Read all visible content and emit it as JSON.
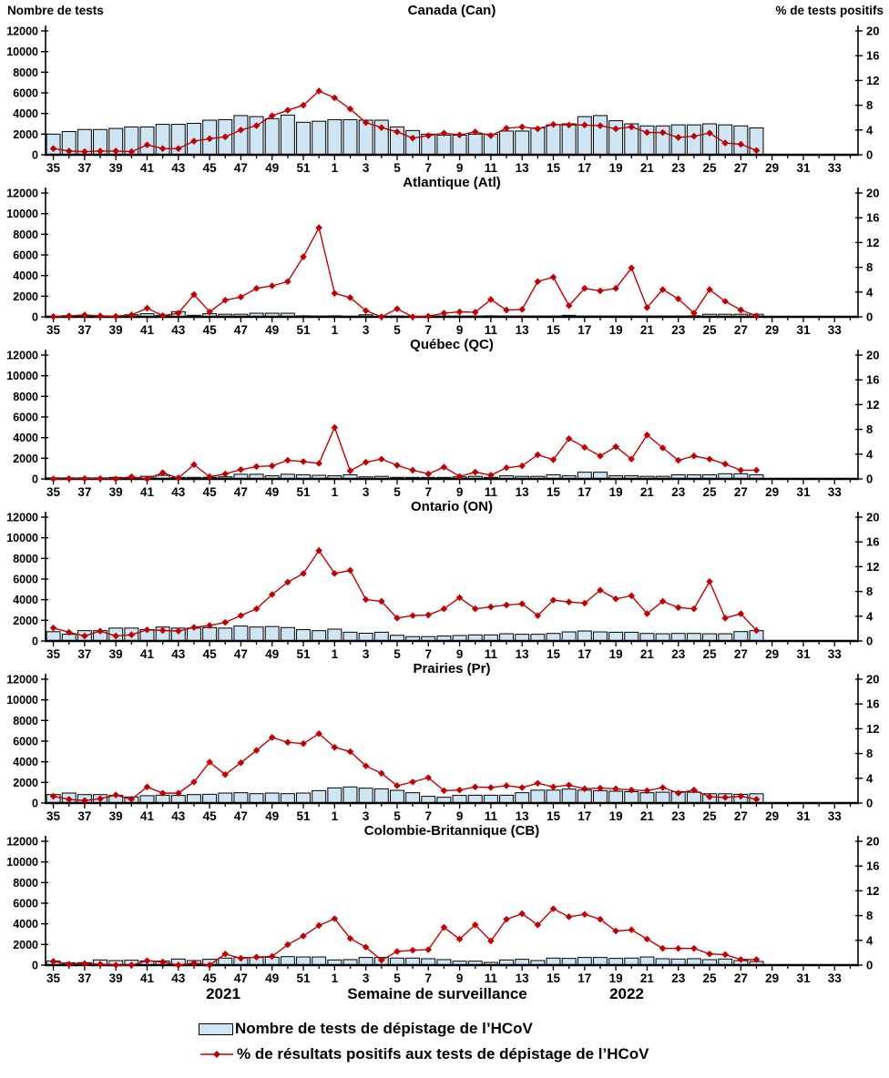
{
  "header": {
    "left_axis_title": "Nombre de tests",
    "right_axis_title": "% de tests positifs"
  },
  "footer": {
    "year_left": "2021",
    "x_axis_label": "Semaine de surveillance",
    "year_right": "2022"
  },
  "legend": {
    "bars_label": "Nombre de tests de dépistage de l’HCoV",
    "line_label": "% de résultats positifs aux tests de dépistage de l’HCoV"
  },
  "colors": {
    "bar_fill": "#cfe5f4",
    "bar_stroke": "#000000",
    "line_color": "#c00000",
    "axis_color": "#000000"
  },
  "axes": {
    "weeks": [
      35,
      36,
      37,
      38,
      39,
      40,
      41,
      42,
      43,
      44,
      45,
      46,
      47,
      48,
      49,
      50,
      51,
      52,
      1,
      2,
      3,
      4,
      5,
      6,
      7,
      8,
      9,
      10,
      11,
      12,
      13,
      14,
      15,
      16,
      17,
      18,
      19,
      20,
      21,
      22,
      23,
      24,
      25,
      26,
      27,
      28,
      29,
      30,
      31,
      32,
      33,
      34
    ],
    "x_tick_labels": [
      35,
      37,
      39,
      41,
      43,
      45,
      47,
      49,
      51,
      1,
      3,
      5,
      7,
      9,
      11,
      13,
      15,
      17,
      19,
      21,
      23,
      25,
      27,
      29,
      31,
      33
    ],
    "left_ticks": [
      0,
      2000,
      4000,
      6000,
      8000,
      10000,
      12000
    ],
    "right_ticks": [
      0,
      4,
      8,
      12,
      16,
      20
    ],
    "ylim_left": [
      0,
      12000
    ],
    "ylim_right": [
      0,
      20
    ]
  },
  "chart_data": [
    {
      "type": "bar+line",
      "id": "Can",
      "title": "Canada (Can)",
      "bars": [
        2000,
        2250,
        2450,
        2450,
        2550,
        2700,
        2700,
        2950,
        2950,
        3050,
        3350,
        3400,
        3800,
        3700,
        3500,
        3850,
        3150,
        3250,
        3400,
        3400,
        3350,
        3350,
        2700,
        2350,
        2000,
        1900,
        1900,
        2000,
        2000,
        2300,
        2300,
        2600,
        2900,
        3000,
        3700,
        3800,
        3300,
        3000,
        2800,
        2800,
        2900,
        2900,
        3000,
        2900,
        2800,
        2600
      ],
      "line": [
        1.0,
        0.6,
        0.5,
        0.6,
        0.6,
        0.5,
        1.6,
        1.0,
        1.0,
        2.2,
        2.6,
        2.9,
        4.0,
        4.7,
        6.3,
        7.2,
        8.0,
        10.3,
        9.2,
        7.4,
        5.2,
        4.4,
        3.7,
        2.7,
        3.1,
        3.5,
        3.2,
        3.7,
        3.1,
        4.3,
        4.5,
        4.2,
        4.9,
        4.8,
        4.8,
        4.7,
        4.2,
        4.5,
        3.6,
        3.6,
        2.8,
        3.0,
        3.5,
        1.9,
        1.7,
        0.7
      ]
    },
    {
      "type": "bar+line",
      "id": "Atl",
      "title": "Atlantique (Atl)",
      "bars": [
        60,
        120,
        150,
        80,
        60,
        200,
        300,
        150,
        500,
        150,
        300,
        250,
        250,
        350,
        350,
        350,
        100,
        80,
        100,
        60,
        200,
        50,
        80,
        50,
        50,
        80,
        80,
        80,
        100,
        80,
        80,
        80,
        80,
        150,
        80,
        80,
        80,
        80,
        80,
        80,
        80,
        100,
        250,
        250,
        250,
        250
      ],
      "line": [
        0.05,
        0.15,
        0.3,
        0.15,
        0.1,
        0.3,
        1.4,
        0.2,
        0.6,
        3.6,
        0.8,
        2.7,
        3.2,
        4.6,
        5.0,
        5.7,
        9.7,
        14.4,
        3.8,
        3.1,
        1.0,
        0.0,
        1.3,
        0.0,
        0.1,
        0.6,
        0.8,
        0.75,
        2.8,
        1.1,
        1.2,
        5.7,
        6.4,
        1.8,
        4.6,
        4.2,
        4.6,
        7.9,
        1.5,
        4.4,
        2.9,
        0.6,
        4.4,
        2.5,
        1.1,
        0.15
      ]
    },
    {
      "type": "bar+line",
      "id": "QC",
      "title": "Québec (QC)",
      "bars": [
        100,
        100,
        100,
        100,
        150,
        100,
        250,
        350,
        150,
        150,
        150,
        200,
        450,
        450,
        300,
        450,
        400,
        350,
        300,
        400,
        200,
        250,
        150,
        150,
        150,
        150,
        200,
        250,
        150,
        300,
        250,
        250,
        400,
        300,
        650,
        650,
        300,
        300,
        250,
        250,
        400,
        400,
        400,
        500,
        500,
        400
      ],
      "line": [
        0.0,
        0.05,
        0.05,
        0.05,
        0.0,
        0.35,
        0.0,
        1.0,
        0.15,
        2.3,
        0.35,
        0.8,
        1.5,
        2.0,
        2.1,
        3.0,
        2.8,
        2.5,
        8.3,
        1.3,
        2.7,
        3.2,
        2.2,
        1.4,
        0.8,
        1.9,
        0.4,
        1.1,
        0.6,
        1.8,
        2.1,
        3.9,
        3.1,
        6.5,
        5.1,
        3.7,
        5.2,
        3.2,
        7.1,
        5.0,
        3.0,
        3.7,
        3.2,
        2.4,
        1.4,
        1.4
      ]
    },
    {
      "type": "bar+line",
      "id": "ON",
      "title": "Ontario (ON)",
      "bars": [
        900,
        650,
        1000,
        1000,
        1250,
        1250,
        1100,
        1350,
        1250,
        1250,
        1300,
        1250,
        1450,
        1350,
        1400,
        1300,
        1100,
        1000,
        1150,
        850,
        750,
        850,
        550,
        420,
        420,
        480,
        530,
        590,
        590,
        700,
        650,
        650,
        730,
        880,
        970,
        880,
        850,
        850,
        730,
        700,
        730,
        730,
        700,
        700,
        910,
        1000
      ],
      "line": [
        2.1,
        1.4,
        0.8,
        1.6,
        0.8,
        1.0,
        1.8,
        1.7,
        1.6,
        2.2,
        2.5,
        3.0,
        4.1,
        5.2,
        7.5,
        9.5,
        10.9,
        14.6,
        10.9,
        11.4,
        6.7,
        6.4,
        3.7,
        4.1,
        4.2,
        5.2,
        7.0,
        5.2,
        5.5,
        5.8,
        6.0,
        4.1,
        6.6,
        6.3,
        6.1,
        8.2,
        6.8,
        7.3,
        4.4,
        6.4,
        5.4,
        5.2,
        9.6,
        3.7,
        4.4,
        1.7
      ]
    },
    {
      "type": "bar+line",
      "id": "Pr",
      "title": "Prairies (Pr)",
      "bars": [
        820,
        970,
        820,
        820,
        740,
        590,
        710,
        760,
        740,
        820,
        850,
        970,
        1000,
        910,
        970,
        910,
        970,
        1200,
        1470,
        1560,
        1440,
        1380,
        1230,
        1000,
        650,
        560,
        740,
        760,
        760,
        760,
        1000,
        1250,
        1250,
        1350,
        1250,
        1200,
        1150,
        1100,
        1000,
        1050,
        1100,
        1050,
        900,
        900,
        850,
        900
      ],
      "line": [
        1.1,
        0.6,
        0.4,
        0.7,
        1.3,
        0.6,
        2.6,
        1.6,
        1.6,
        3.4,
        6.6,
        4.6,
        6.5,
        8.5,
        10.6,
        9.8,
        9.6,
        11.2,
        9.0,
        8.3,
        6.0,
        4.8,
        2.8,
        3.4,
        4.1,
        2.0,
        2.1,
        2.6,
        2.5,
        2.8,
        2.5,
        3.2,
        2.6,
        2.9,
        2.3,
        2.4,
        2.3,
        2.1,
        2.0,
        2.5,
        1.6,
        2.1,
        1.0,
        0.9,
        1.1,
        0.6
      ]
    },
    {
      "type": "bar+line",
      "id": "CB",
      "title": "Colombie-Britannique (CB)",
      "bars": [
        390,
        210,
        240,
        500,
        440,
        470,
        410,
        390,
        590,
        440,
        560,
        680,
        740,
        740,
        760,
        820,
        790,
        790,
        500,
        530,
        740,
        740,
        680,
        680,
        620,
        530,
        380,
        380,
        260,
        500,
        560,
        440,
        680,
        650,
        740,
        740,
        650,
        680,
        790,
        620,
        590,
        620,
        530,
        590,
        440,
        350
      ],
      "line": [
        0.6,
        0.15,
        0.25,
        0.15,
        0.0,
        0.0,
        0.7,
        0.5,
        0.0,
        0.35,
        0.0,
        1.8,
        1.1,
        1.3,
        1.4,
        3.3,
        4.7,
        6.4,
        7.5,
        4.3,
        2.9,
        0.8,
        2.2,
        2.4,
        2.5,
        6.1,
        4.2,
        6.5,
        3.9,
        7.4,
        8.3,
        6.5,
        9.1,
        7.8,
        8.2,
        7.4,
        5.5,
        5.7,
        4.2,
        2.7,
        2.7,
        2.7,
        1.8,
        1.7,
        0.9,
        0.9
      ]
    }
  ]
}
